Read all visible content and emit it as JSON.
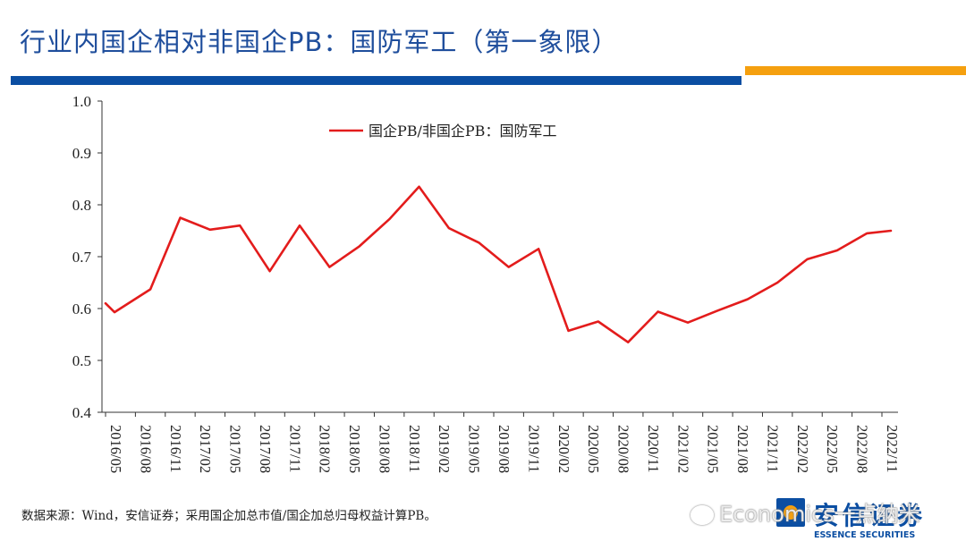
{
  "header": {
    "title": "行业内国企相对非国企PB：国防军工（第一象限）"
  },
  "colors": {
    "title": "#1f4e9c",
    "bar_blue": "#0b4ea2",
    "bar_orange": "#f5a00f",
    "series_line": "#e31c1c"
  },
  "chart_data": {
    "type": "line",
    "ylim": [
      0.4,
      1.0
    ],
    "yticks": [
      "1.0",
      "0.9",
      "0.8",
      "0.7",
      "0.6",
      "0.5",
      "0.4"
    ],
    "ytick_values": [
      1.0,
      0.9,
      0.8,
      0.7,
      0.6,
      0.5,
      0.4
    ],
    "x_tick_labels": [
      "2016/05",
      "2016/08",
      "2016/11",
      "2017/02",
      "2017/05",
      "2017/08",
      "2017/11",
      "2018/02",
      "2018/05",
      "2018/08",
      "2018/11",
      "2019/02",
      "2019/05",
      "2019/08",
      "2019/11",
      "2020/02",
      "2020/05",
      "2020/08",
      "2020/11",
      "2021/02",
      "2021/05",
      "2021/08",
      "2021/11",
      "2022/02",
      "2022/05",
      "2022/08",
      "2022/11"
    ],
    "legend_position": "top-center",
    "grid": false,
    "series": [
      {
        "name": "国企PB/非国企PB：国防军工",
        "x_index": [
          0,
          0.3,
          1.5,
          2.5,
          3.5,
          4.5,
          5.5,
          6.5,
          7.5,
          8.5,
          9.5,
          10.5,
          11.5,
          12.5,
          13.5,
          14.5,
          15.5,
          16.5,
          17.5,
          18.5,
          19.5,
          20.5,
          21.5,
          22.5,
          23.5,
          24.5,
          25.5,
          26.3
        ],
        "values": [
          0.61,
          0.593,
          0.637,
          0.775,
          0.752,
          0.76,
          0.672,
          0.76,
          0.68,
          0.72,
          0.772,
          0.835,
          0.755,
          0.727,
          0.68,
          0.715,
          0.557,
          0.575,
          0.535,
          0.594,
          0.573,
          0.596,
          0.618,
          0.65,
          0.695,
          0.712,
          0.745,
          0.75
        ]
      }
    ]
  },
  "footer": {
    "source_note": "数据来源：Wind，安信证券；采用国企加总市值/国企加总归母权益计算PB。",
    "watermark_text": "Economics一点纳米",
    "logo_cn": "安信证券",
    "logo_en": "ESSENCE SECURITIES"
  }
}
